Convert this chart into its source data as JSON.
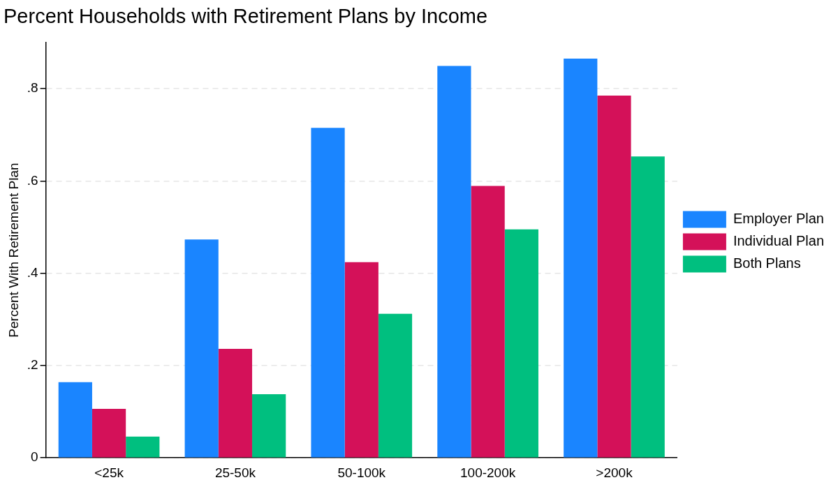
{
  "chart_data": {
    "type": "bar",
    "title": "Percent Households with Retirement Plans by Income",
    "ylabel": "Percent With Retirement Plan",
    "categories": [
      "<25k",
      "25-50k",
      "50-100k",
      "100-200k",
      ">200k"
    ],
    "series": [
      {
        "name": "Employer Plan",
        "color": "#1a85ff",
        "values": [
          0.164,
          0.473,
          0.715,
          0.849,
          0.865
        ]
      },
      {
        "name": "Individual Plan",
        "color": "#d41159",
        "values": [
          0.106,
          0.236,
          0.424,
          0.589,
          0.785
        ]
      },
      {
        "name": "Both Plans",
        "color": "#00bf7f",
        "values": [
          0.046,
          0.138,
          0.312,
          0.495,
          0.653
        ]
      }
    ],
    "ylim": [
      0,
      0.9
    ],
    "yticks": [
      0,
      {
        "value": 0.2,
        "label": ".2"
      },
      {
        "value": 0.4,
        "label": ".4"
      },
      {
        "value": 0.6,
        "label": ".6"
      },
      {
        "value": 0.8,
        "label": ".8"
      }
    ],
    "grid": "y",
    "legend": "right"
  }
}
